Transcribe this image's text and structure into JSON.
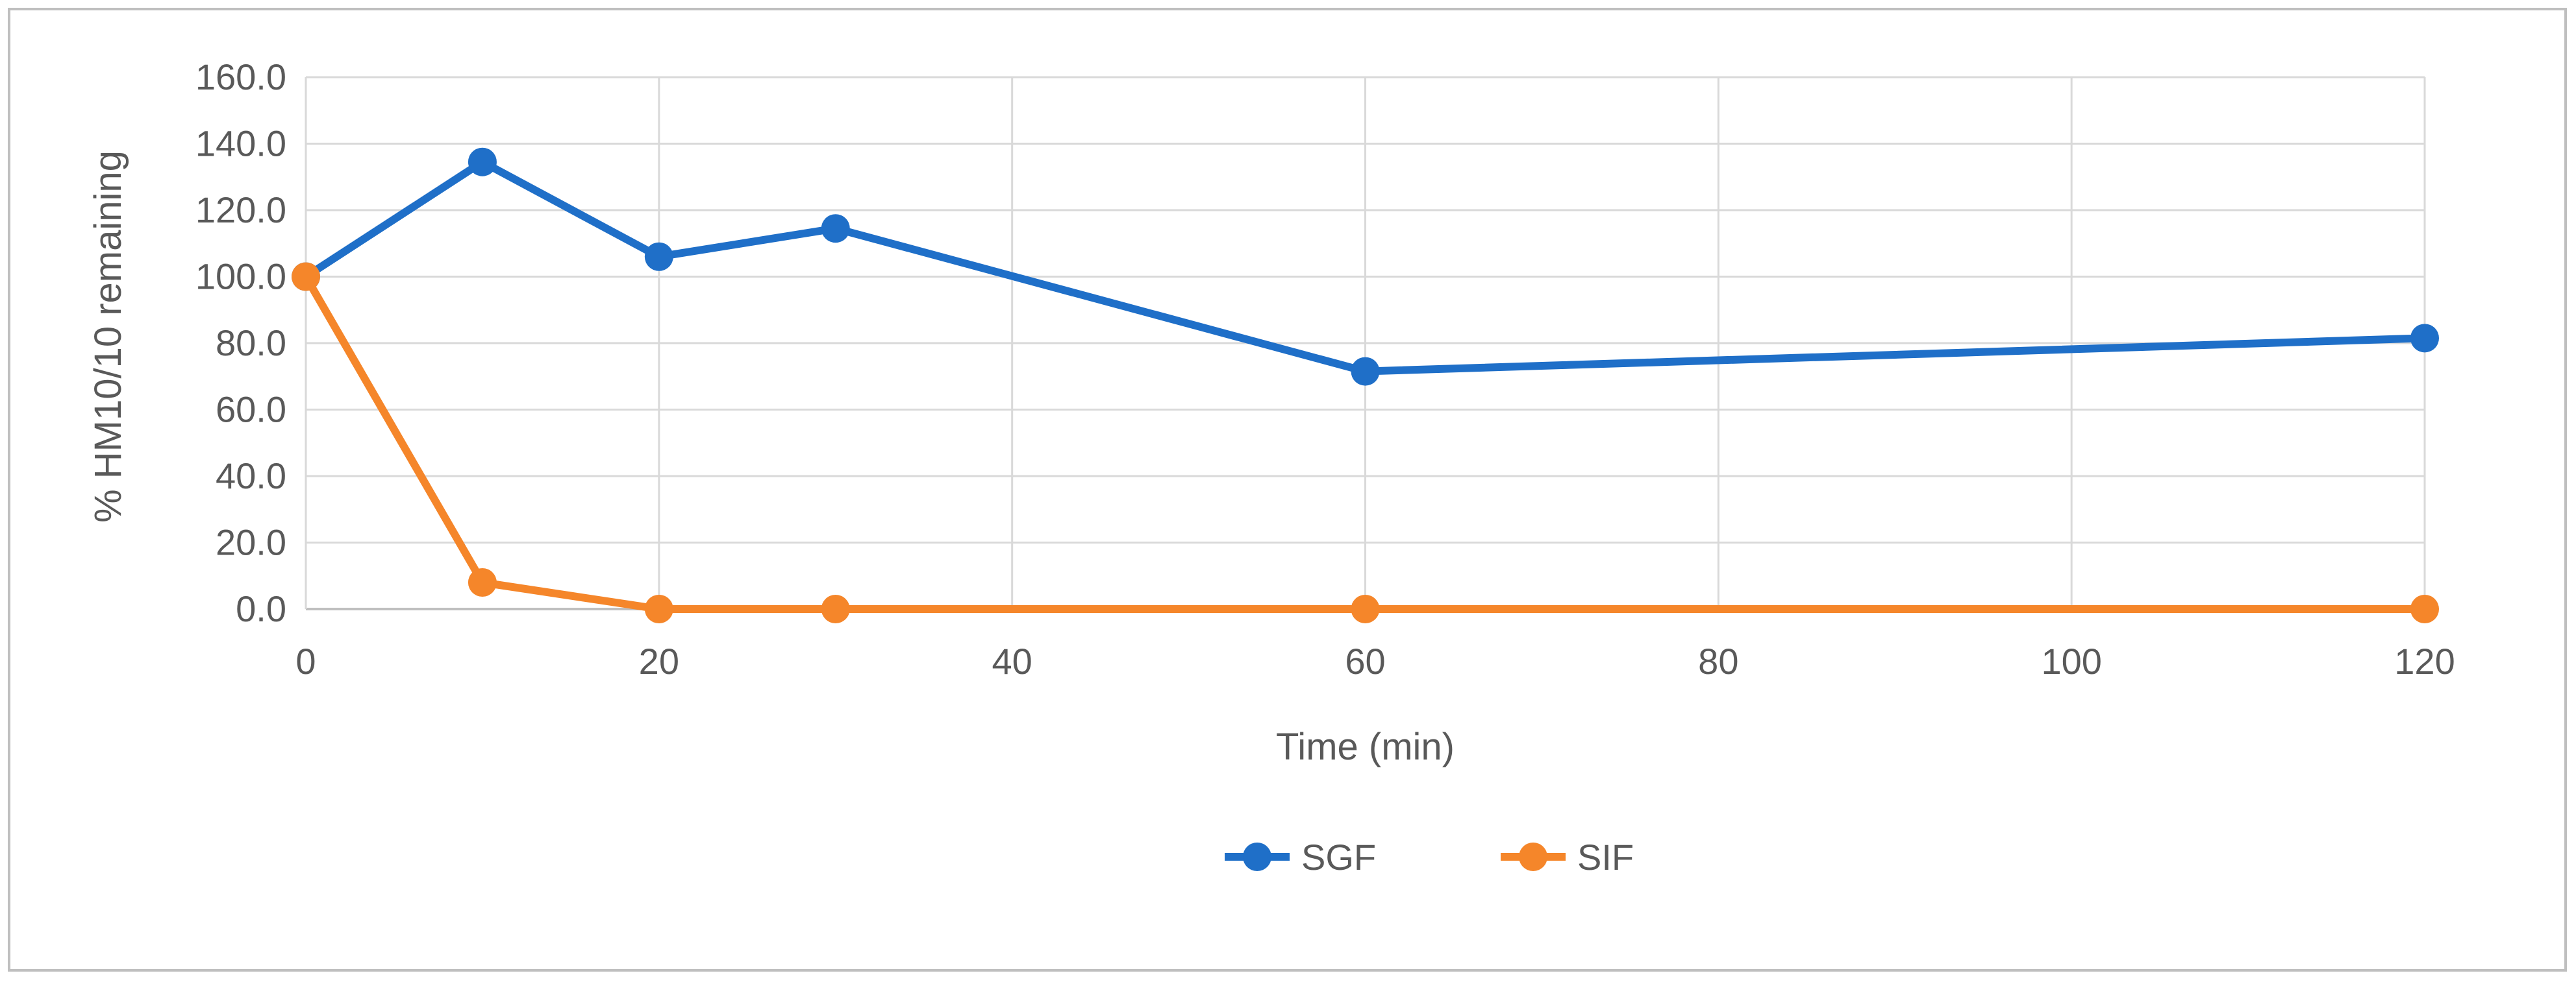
{
  "chart_data": {
    "type": "line",
    "title": "",
    "xlabel": "Time (min)",
    "ylabel": "% HM10/10 remaining",
    "x": [
      0,
      10,
      20,
      30,
      60,
      120
    ],
    "xlim": [
      0,
      120
    ],
    "ylim": [
      0,
      160
    ],
    "x_ticks": [
      "0",
      "20",
      "40",
      "60",
      "80",
      "100",
      "120"
    ],
    "x_tick_values": [
      0,
      20,
      40,
      60,
      80,
      100,
      120
    ],
    "y_ticks": [
      "0.0",
      "20.0",
      "40.0",
      "60.0",
      "80.0",
      "100.0",
      "120.0",
      "140.0",
      "160.0"
    ],
    "y_tick_values": [
      0,
      20,
      40,
      60,
      80,
      100,
      120,
      140,
      160
    ],
    "grid": true,
    "legend_position": "bottom",
    "series": [
      {
        "name": "SGF",
        "color": "#1f6fc8",
        "values": [
          100.0,
          134.5,
          106.0,
          114.5,
          71.5,
          81.5
        ]
      },
      {
        "name": "SIF",
        "color": "#f5862a",
        "values": [
          100.0,
          8.0,
          0.0,
          0.0,
          0.0,
          0.0
        ]
      }
    ]
  }
}
